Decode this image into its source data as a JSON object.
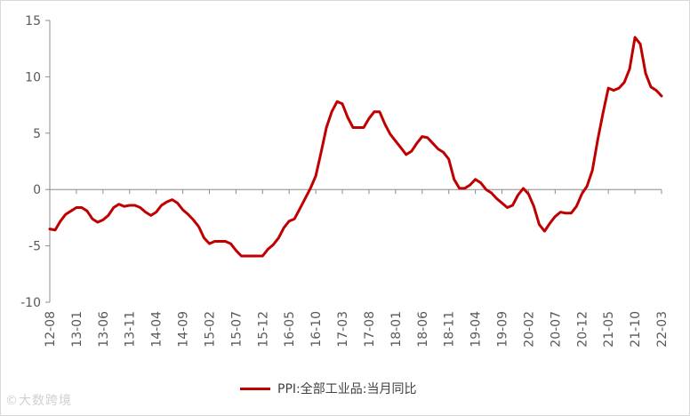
{
  "chart_data": {
    "type": "line",
    "title": "",
    "xlabel": "",
    "ylabel": "",
    "ylim": [
      -10,
      15
    ],
    "yticks": [
      -10,
      -5,
      0,
      5,
      10,
      15
    ],
    "grid": false,
    "legend_position": "bottom",
    "x_tick_labels": [
      "12-08",
      "13-01",
      "13-06",
      "13-11",
      "14-04",
      "14-09",
      "15-02",
      "15-07",
      "15-12",
      "16-05",
      "16-10",
      "17-03",
      "17-08",
      "18-01",
      "18-06",
      "18-11",
      "19-04",
      "19-09",
      "20-02",
      "20-07",
      "20-12",
      "21-05",
      "21-10",
      "22-03"
    ],
    "series": [
      {
        "name": "PPI:全部工业品:当月同比",
        "color": "#c00000",
        "x": [
          "2012-08",
          "2012-09",
          "2012-10",
          "2012-11",
          "2012-12",
          "2013-01",
          "2013-02",
          "2013-03",
          "2013-04",
          "2013-05",
          "2013-06",
          "2013-07",
          "2013-08",
          "2013-09",
          "2013-10",
          "2013-11",
          "2013-12",
          "2014-01",
          "2014-02",
          "2014-03",
          "2014-04",
          "2014-05",
          "2014-06",
          "2014-07",
          "2014-08",
          "2014-09",
          "2014-10",
          "2014-11",
          "2014-12",
          "2015-01",
          "2015-02",
          "2015-03",
          "2015-04",
          "2015-05",
          "2015-06",
          "2015-07",
          "2015-08",
          "2015-09",
          "2015-10",
          "2015-11",
          "2015-12",
          "2016-01",
          "2016-02",
          "2016-03",
          "2016-04",
          "2016-05",
          "2016-06",
          "2016-07",
          "2016-08",
          "2016-09",
          "2016-10",
          "2016-11",
          "2016-12",
          "2017-01",
          "2017-02",
          "2017-03",
          "2017-04",
          "2017-05",
          "2017-06",
          "2017-07",
          "2017-08",
          "2017-09",
          "2017-10",
          "2017-11",
          "2017-12",
          "2018-01",
          "2018-02",
          "2018-03",
          "2018-04",
          "2018-05",
          "2018-06",
          "2018-07",
          "2018-08",
          "2018-09",
          "2018-10",
          "2018-11",
          "2018-12",
          "2019-01",
          "2019-02",
          "2019-03",
          "2019-04",
          "2019-05",
          "2019-06",
          "2019-07",
          "2019-08",
          "2019-09",
          "2019-10",
          "2019-11",
          "2019-12",
          "2020-01",
          "2020-02",
          "2020-03",
          "2020-04",
          "2020-05",
          "2020-06",
          "2020-07",
          "2020-08",
          "2020-09",
          "2020-10",
          "2020-11",
          "2020-12",
          "2021-01",
          "2021-02",
          "2021-03",
          "2021-04",
          "2021-05",
          "2021-06",
          "2021-07",
          "2021-08",
          "2021-09",
          "2021-10",
          "2021-11",
          "2021-12",
          "2022-01",
          "2022-02",
          "2022-03"
        ],
        "values": [
          -3.5,
          -3.6,
          -2.8,
          -2.2,
          -1.9,
          -1.6,
          -1.6,
          -1.9,
          -2.6,
          -2.9,
          -2.7,
          -2.3,
          -1.6,
          -1.3,
          -1.5,
          -1.4,
          -1.4,
          -1.6,
          -2.0,
          -2.3,
          -2.0,
          -1.4,
          -1.1,
          -0.9,
          -1.2,
          -1.8,
          -2.2,
          -2.7,
          -3.3,
          -4.3,
          -4.8,
          -4.6,
          -4.6,
          -4.6,
          -4.8,
          -5.4,
          -5.9,
          -5.9,
          -5.9,
          -5.9,
          -5.9,
          -5.3,
          -4.9,
          -4.3,
          -3.4,
          -2.8,
          -2.6,
          -1.7,
          -0.8,
          0.1,
          1.2,
          3.3,
          5.5,
          6.9,
          7.8,
          7.6,
          6.4,
          5.5,
          5.5,
          5.5,
          6.3,
          6.9,
          6.9,
          5.8,
          4.9,
          4.3,
          3.7,
          3.1,
          3.4,
          4.1,
          4.7,
          4.6,
          4.1,
          3.6,
          3.3,
          2.7,
          0.9,
          0.1,
          0.1,
          0.4,
          0.9,
          0.6,
          0.0,
          -0.3,
          -0.8,
          -1.2,
          -1.6,
          -1.4,
          -0.5,
          0.1,
          -0.4,
          -1.5,
          -3.1,
          -3.7,
          -3.0,
          -2.4,
          -2.0,
          -2.1,
          -2.1,
          -1.5,
          -0.4,
          0.3,
          1.7,
          4.4,
          6.8,
          9.0,
          8.8,
          9.0,
          9.5,
          10.7,
          13.5,
          12.9,
          10.3,
          9.1,
          8.8,
          8.3
        ]
      }
    ]
  },
  "watermark": "©大数跨境"
}
